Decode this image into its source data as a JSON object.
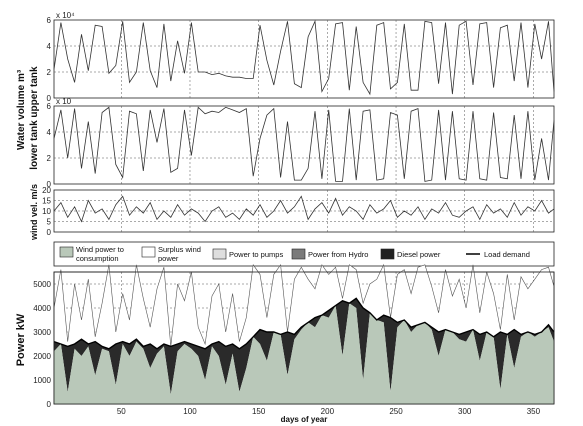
{
  "chart_data": [
    {
      "type": "line",
      "panel": "upper",
      "ylabel_line1": "Water volume m³",
      "ylabel_line2": "upper tank",
      "ylim": [
        0,
        6
      ],
      "yticks": [
        "0",
        "2",
        "4",
        "6"
      ],
      "exponent": "x 10⁴",
      "x": [
        1,
        6,
        11,
        16,
        21,
        26,
        31,
        36,
        41,
        46,
        51,
        56,
        61,
        66,
        71,
        76,
        81,
        86,
        91,
        96,
        101,
        106,
        111,
        116,
        121,
        126,
        131,
        136,
        141,
        146,
        151,
        156,
        161,
        166,
        171,
        176,
        181,
        186,
        191,
        196,
        201,
        206,
        211,
        216,
        221,
        226,
        231,
        236,
        241,
        246,
        251,
        256,
        261,
        266,
        271,
        276,
        281,
        286,
        291,
        296,
        301,
        306,
        311,
        316,
        321,
        326,
        331,
        336,
        341,
        346,
        351,
        356,
        361,
        365
      ],
      "values": [
        2.2,
        5.8,
        3.0,
        1.2,
        4.9,
        2.1,
        5.6,
        5.5,
        1.9,
        2.5,
        5.9,
        1.2,
        2.0,
        5.8,
        2.1,
        0.8,
        5.7,
        1.3,
        4.4,
        1.9,
        5.8,
        2.0,
        2.0,
        1.8,
        1.9,
        1.7,
        1.6,
        1.6,
        1.5,
        1.5,
        5.6,
        2.9,
        1.0,
        3.6,
        5.9,
        1.1,
        0.8,
        4.7,
        5.9,
        0.5,
        1.5,
        5.7,
        5.8,
        0.6,
        5.5,
        1.2,
        0.3,
        5.6,
        5.8,
        0.7,
        1.2,
        5.7,
        0.6,
        0.6,
        5.9,
        5.8,
        1.1,
        5.8,
        0.3,
        5.6,
        5.9,
        1.0,
        5.7,
        5.8,
        0.8,
        5.4,
        5.6,
        1.3,
        5.8,
        0.8,
        5.7,
        3.0,
        5.9,
        0.5
      ]
    },
    {
      "type": "line",
      "panel": "lower",
      "ylabel": "lower tank",
      "ylim": [
        0,
        6
      ],
      "yticks": [
        "0",
        "2",
        "4",
        "6"
      ],
      "exponent": "x 10",
      "x": [
        1,
        6,
        11,
        16,
        21,
        26,
        31,
        36,
        41,
        46,
        51,
        56,
        61,
        66,
        71,
        76,
        81,
        86,
        91,
        96,
        101,
        106,
        111,
        116,
        121,
        126,
        131,
        136,
        141,
        146,
        151,
        156,
        161,
        166,
        171,
        176,
        181,
        186,
        191,
        196,
        201,
        206,
        211,
        216,
        221,
        226,
        231,
        236,
        241,
        246,
        251,
        256,
        261,
        266,
        271,
        276,
        281,
        286,
        291,
        296,
        301,
        306,
        311,
        316,
        321,
        326,
        331,
        336,
        341,
        346,
        351,
        356,
        361,
        365
      ],
      "values": [
        3.5,
        5.7,
        2.0,
        5.8,
        1.2,
        4.8,
        0.8,
        5.5,
        5.9,
        1.5,
        0.5,
        5.6,
        5.4,
        1.0,
        5.7,
        3.2,
        5.8,
        0.9,
        1.2,
        5.7,
        2.2,
        5.9,
        5.4,
        5.6,
        5.5,
        5.9,
        5.7,
        5.5,
        5.8,
        0.6,
        3.5,
        5.3,
        5.8,
        0.5,
        4.8,
        0.3,
        0.3,
        1.2,
        5.6,
        0.4,
        5.7,
        0.2,
        0.2,
        5.8,
        0.3,
        5.6,
        5.7,
        0.3,
        0.4,
        5.5,
        5.3,
        0.4,
        5.6,
        5.8,
        0.2,
        0.3,
        5.7,
        0.3,
        5.6,
        0.4,
        0.3,
        5.6,
        0.4,
        0.3,
        5.5,
        0.5,
        0.4,
        5.3,
        0.4,
        5.6,
        0.3,
        3.5,
        0.3,
        4.9
      ]
    },
    {
      "type": "line",
      "panel": "wind",
      "ylabel": "wind vel. m/s",
      "ylim": [
        0,
        20
      ],
      "yticks": [
        "0",
        "5",
        "10",
        "15",
        "20"
      ],
      "x": [
        1,
        6,
        11,
        16,
        21,
        26,
        31,
        36,
        41,
        46,
        51,
        56,
        61,
        66,
        71,
        76,
        81,
        86,
        91,
        96,
        101,
        106,
        111,
        116,
        121,
        126,
        131,
        136,
        141,
        146,
        151,
        156,
        161,
        166,
        171,
        176,
        181,
        186,
        191,
        196,
        201,
        206,
        211,
        216,
        221,
        226,
        231,
        236,
        241,
        246,
        251,
        256,
        261,
        266,
        271,
        276,
        281,
        286,
        291,
        296,
        301,
        306,
        311,
        316,
        321,
        326,
        331,
        336,
        341,
        346,
        351,
        356,
        361,
        365
      ],
      "values": [
        10,
        14,
        7,
        12,
        5,
        15,
        9,
        11,
        6,
        13,
        17,
        8,
        12,
        9,
        14,
        6,
        10,
        7,
        13,
        8,
        11,
        9,
        5,
        10,
        12,
        7,
        9,
        6,
        11,
        8,
        13,
        7,
        10,
        15,
        9,
        12,
        17,
        6,
        11,
        14,
        9,
        16,
        8,
        12,
        10,
        6,
        13,
        9,
        11,
        15,
        7,
        10,
        8,
        12,
        6,
        11,
        9,
        14,
        8,
        7,
        10,
        12,
        6,
        13,
        9,
        11,
        7,
        14,
        8,
        12,
        10,
        15,
        9,
        11
      ]
    },
    {
      "type": "area",
      "panel": "power",
      "ylabel": "Power kW",
      "xlabel": "days of year",
      "xlim": [
        1,
        365
      ],
      "ylim": [
        0,
        5500
      ],
      "xticks": [
        "50",
        "100",
        "150",
        "200",
        "250",
        "300",
        "350"
      ],
      "yticks": [
        "0",
        "1000",
        "2000",
        "3000",
        "4000",
        "5000"
      ],
      "legend": [
        {
          "label": "Wind power to consumption",
          "label_line1": "Wind power to",
          "label_line2": "consumption",
          "color": "#b9c8b9"
        },
        {
          "label": "Surplus wind power",
          "label_line1": "Surplus wind",
          "label_line2": "power",
          "color": "#ffffff"
        },
        {
          "label": "Power to pumps",
          "color": "#dedede"
        },
        {
          "label": "Power from Hydro",
          "color": "#7a7a7a"
        },
        {
          "label": "Diesel power",
          "color": "#222222"
        },
        {
          "label": "Load demand",
          "color": "#000000",
          "line": true
        }
      ],
      "x": [
        1,
        6,
        11,
        16,
        21,
        26,
        31,
        36,
        41,
        46,
        51,
        56,
        61,
        66,
        71,
        76,
        81,
        86,
        91,
        96,
        101,
        106,
        111,
        116,
        121,
        126,
        131,
        136,
        141,
        146,
        151,
        156,
        161,
        166,
        171,
        176,
        181,
        186,
        191,
        196,
        201,
        206,
        211,
        216,
        221,
        226,
        231,
        236,
        241,
        246,
        251,
        256,
        261,
        266,
        271,
        276,
        281,
        286,
        291,
        296,
        301,
        306,
        311,
        316,
        321,
        326,
        331,
        336,
        341,
        346,
        351,
        356,
        361,
        365
      ],
      "series": [
        {
          "name": "Load demand",
          "values": [
            2600,
            2500,
            2400,
            2500,
            2700,
            2500,
            2600,
            2400,
            2300,
            2500,
            2600,
            2500,
            2700,
            2400,
            2500,
            2300,
            2500,
            2400,
            2500,
            2600,
            2500,
            2400,
            2300,
            2500,
            2600,
            2400,
            2500,
            2300,
            2500,
            2800,
            3100,
            3000,
            3000,
            2900,
            3000,
            2900,
            3200,
            3400,
            3600,
            3700,
            3900,
            4100,
            4300,
            4200,
            4400,
            4000,
            3800,
            3500,
            3700,
            3600,
            3400,
            3500,
            3200,
            3300,
            3400,
            3200,
            3000,
            3100,
            3000,
            2900,
            3000,
            3100,
            2900,
            3000,
            2800,
            3000,
            2900,
            3100,
            2900,
            3000,
            2900,
            3000,
            3300,
            3000
          ]
        },
        {
          "name": "Wind power to consumption",
          "values": [
            2200,
            2500,
            500,
            2300,
            2000,
            2400,
            1200,
            2300,
            2200,
            800,
            2500,
            2000,
            2600,
            2300,
            1500,
            2100,
            2400,
            400,
            2200,
            2500,
            2300,
            2000,
            1000,
            2400,
            2000,
            800,
            2100,
            500,
            1500,
            2800,
            2500,
            1800,
            3000,
            2900,
            1200,
            2700,
            3100,
            3400,
            3200,
            3700,
            3600,
            4100,
            2000,
            4200,
            4000,
            1000,
            3800,
            3500,
            3400,
            500,
            3200,
            3500,
            3000,
            3300,
            3400,
            3100,
            2000,
            3100,
            3000,
            2700,
            2600,
            3100,
            1800,
            3000,
            2800,
            600,
            2900,
            1500,
            2800,
            3000,
            2800,
            3000,
            3200,
            2600
          ]
        },
        {
          "name": "Surplus wind",
          "values": [
            4000,
            5600,
            2600,
            5000,
            3500,
            5200,
            2800,
            4200,
            5800,
            3000,
            4600,
            3500,
            5800,
            4400,
            3200,
            4800,
            5700,
            2400,
            5000,
            4300,
            5500,
            3200,
            2500,
            4500,
            5000,
            3000,
            4600,
            2600,
            3600,
            5800,
            5400,
            3600,
            5400,
            5800,
            2800,
            5200,
            5700,
            5200,
            4800,
            5800,
            5400,
            5700,
            4400,
            5800,
            5600,
            4200,
            5000,
            5200,
            5800,
            3400,
            5400,
            5600,
            4600,
            5700,
            5800,
            4900,
            3800,
            5600,
            4500,
            5200,
            4000,
            5800,
            3800,
            5500,
            4600,
            3100,
            5400,
            3500,
            5300,
            4800,
            5200,
            5600,
            5700,
            4900
          ]
        }
      ]
    }
  ]
}
